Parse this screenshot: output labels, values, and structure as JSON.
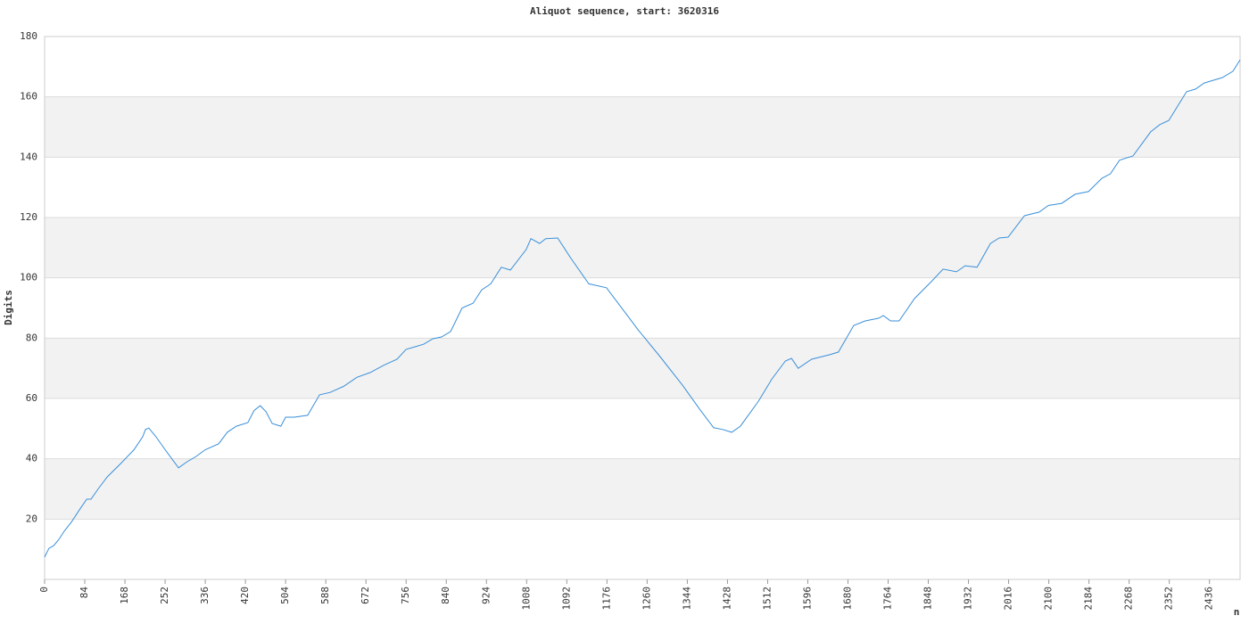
{
  "chart_data": {
    "type": "line",
    "title": "Aliquot sequence, start: 3620316",
    "y_label": "Digits",
    "x_label": "n",
    "xlim": [
      0,
      2500
    ],
    "ylim": [
      0,
      180
    ],
    "xticks": [
      0,
      84,
      168,
      252,
      336,
      420,
      504,
      588,
      672,
      756,
      840,
      924,
      1008,
      1092,
      1176,
      1260,
      1344,
      1428,
      1512,
      1596,
      1680,
      1764,
      1848,
      1932,
      2016,
      2100,
      2184,
      2268,
      2352,
      2436
    ],
    "yticks": [
      20,
      40,
      60,
      80,
      100,
      120,
      140,
      160,
      180
    ],
    "band_color": "#f2f2f2",
    "series": [
      {
        "color": "#3a8fd9",
        "x": [
          0,
          9,
          19,
          30,
          41,
          56,
          75,
          88,
          97,
          112,
          131,
          159,
          187,
          205,
          211,
          218,
          233,
          252,
          280,
          298,
          317,
          336,
          364,
          382,
          401,
          425,
          438,
          451,
          463,
          476,
          494,
          504,
          522,
          550,
          575,
          597,
          625,
          653,
          681,
          709,
          737,
          756,
          774,
          793,
          812,
          830,
          849,
          873,
          896,
          914,
          933,
          955,
          974,
          1007,
          1017,
          1035,
          1048,
          1073,
          1101,
          1138,
          1175,
          1213,
          1241,
          1287,
          1334,
          1371,
          1399,
          1418,
          1437,
          1455,
          1493,
          1521,
          1549,
          1562,
          1576,
          1604,
          1642,
          1660,
          1692,
          1716,
          1744,
          1754,
          1769,
          1787,
          1819,
          1856,
          1879,
          1907,
          1925,
          1950,
          1978,
          1996,
          2015,
          2049,
          2080,
          2099,
          2127,
          2155,
          2183,
          2211,
          2229,
          2248,
          2276,
          2313,
          2332,
          2351,
          2388,
          2407,
          2425,
          2463,
          2485,
          2500
        ],
        "values": [
          7.4,
          10.3,
          11.2,
          13.3,
          16,
          19,
          23.6,
          26.6,
          26.6,
          30,
          34,
          38.4,
          43,
          47.3,
          49.7,
          50.2,
          47.3,
          43,
          37,
          39,
          40.8,
          43,
          45,
          48.8,
          50.8,
          52,
          56,
          57.6,
          55.6,
          51.7,
          50.8,
          53.8,
          53.8,
          54.4,
          61.2,
          62,
          64,
          67,
          68.6,
          71,
          73,
          76.3,
          77.1,
          78,
          79.8,
          80.4,
          82.2,
          90,
          91.6,
          96,
          98,
          103.5,
          102.6,
          109.4,
          113,
          111.4,
          113,
          113.2,
          106.4,
          98,
          96.7,
          88.7,
          82.8,
          73.9,
          64.4,
          56.2,
          50.3,
          49.7,
          48.8,
          50.8,
          59.1,
          66.5,
          72.4,
          73.3,
          70,
          73,
          74.5,
          75.4,
          84.2,
          85.7,
          86.6,
          87.5,
          85.7,
          85.7,
          93.1,
          99,
          102.9,
          102,
          104,
          103.5,
          111.4,
          113.2,
          113.5,
          120.6,
          121.8,
          124,
          124.7,
          127.7,
          128.6,
          133,
          134.5,
          139,
          140.4,
          148.4,
          150.8,
          152.2,
          161.7,
          162.6,
          164.6,
          166.4,
          168.5,
          172.3
        ]
      }
    ]
  }
}
